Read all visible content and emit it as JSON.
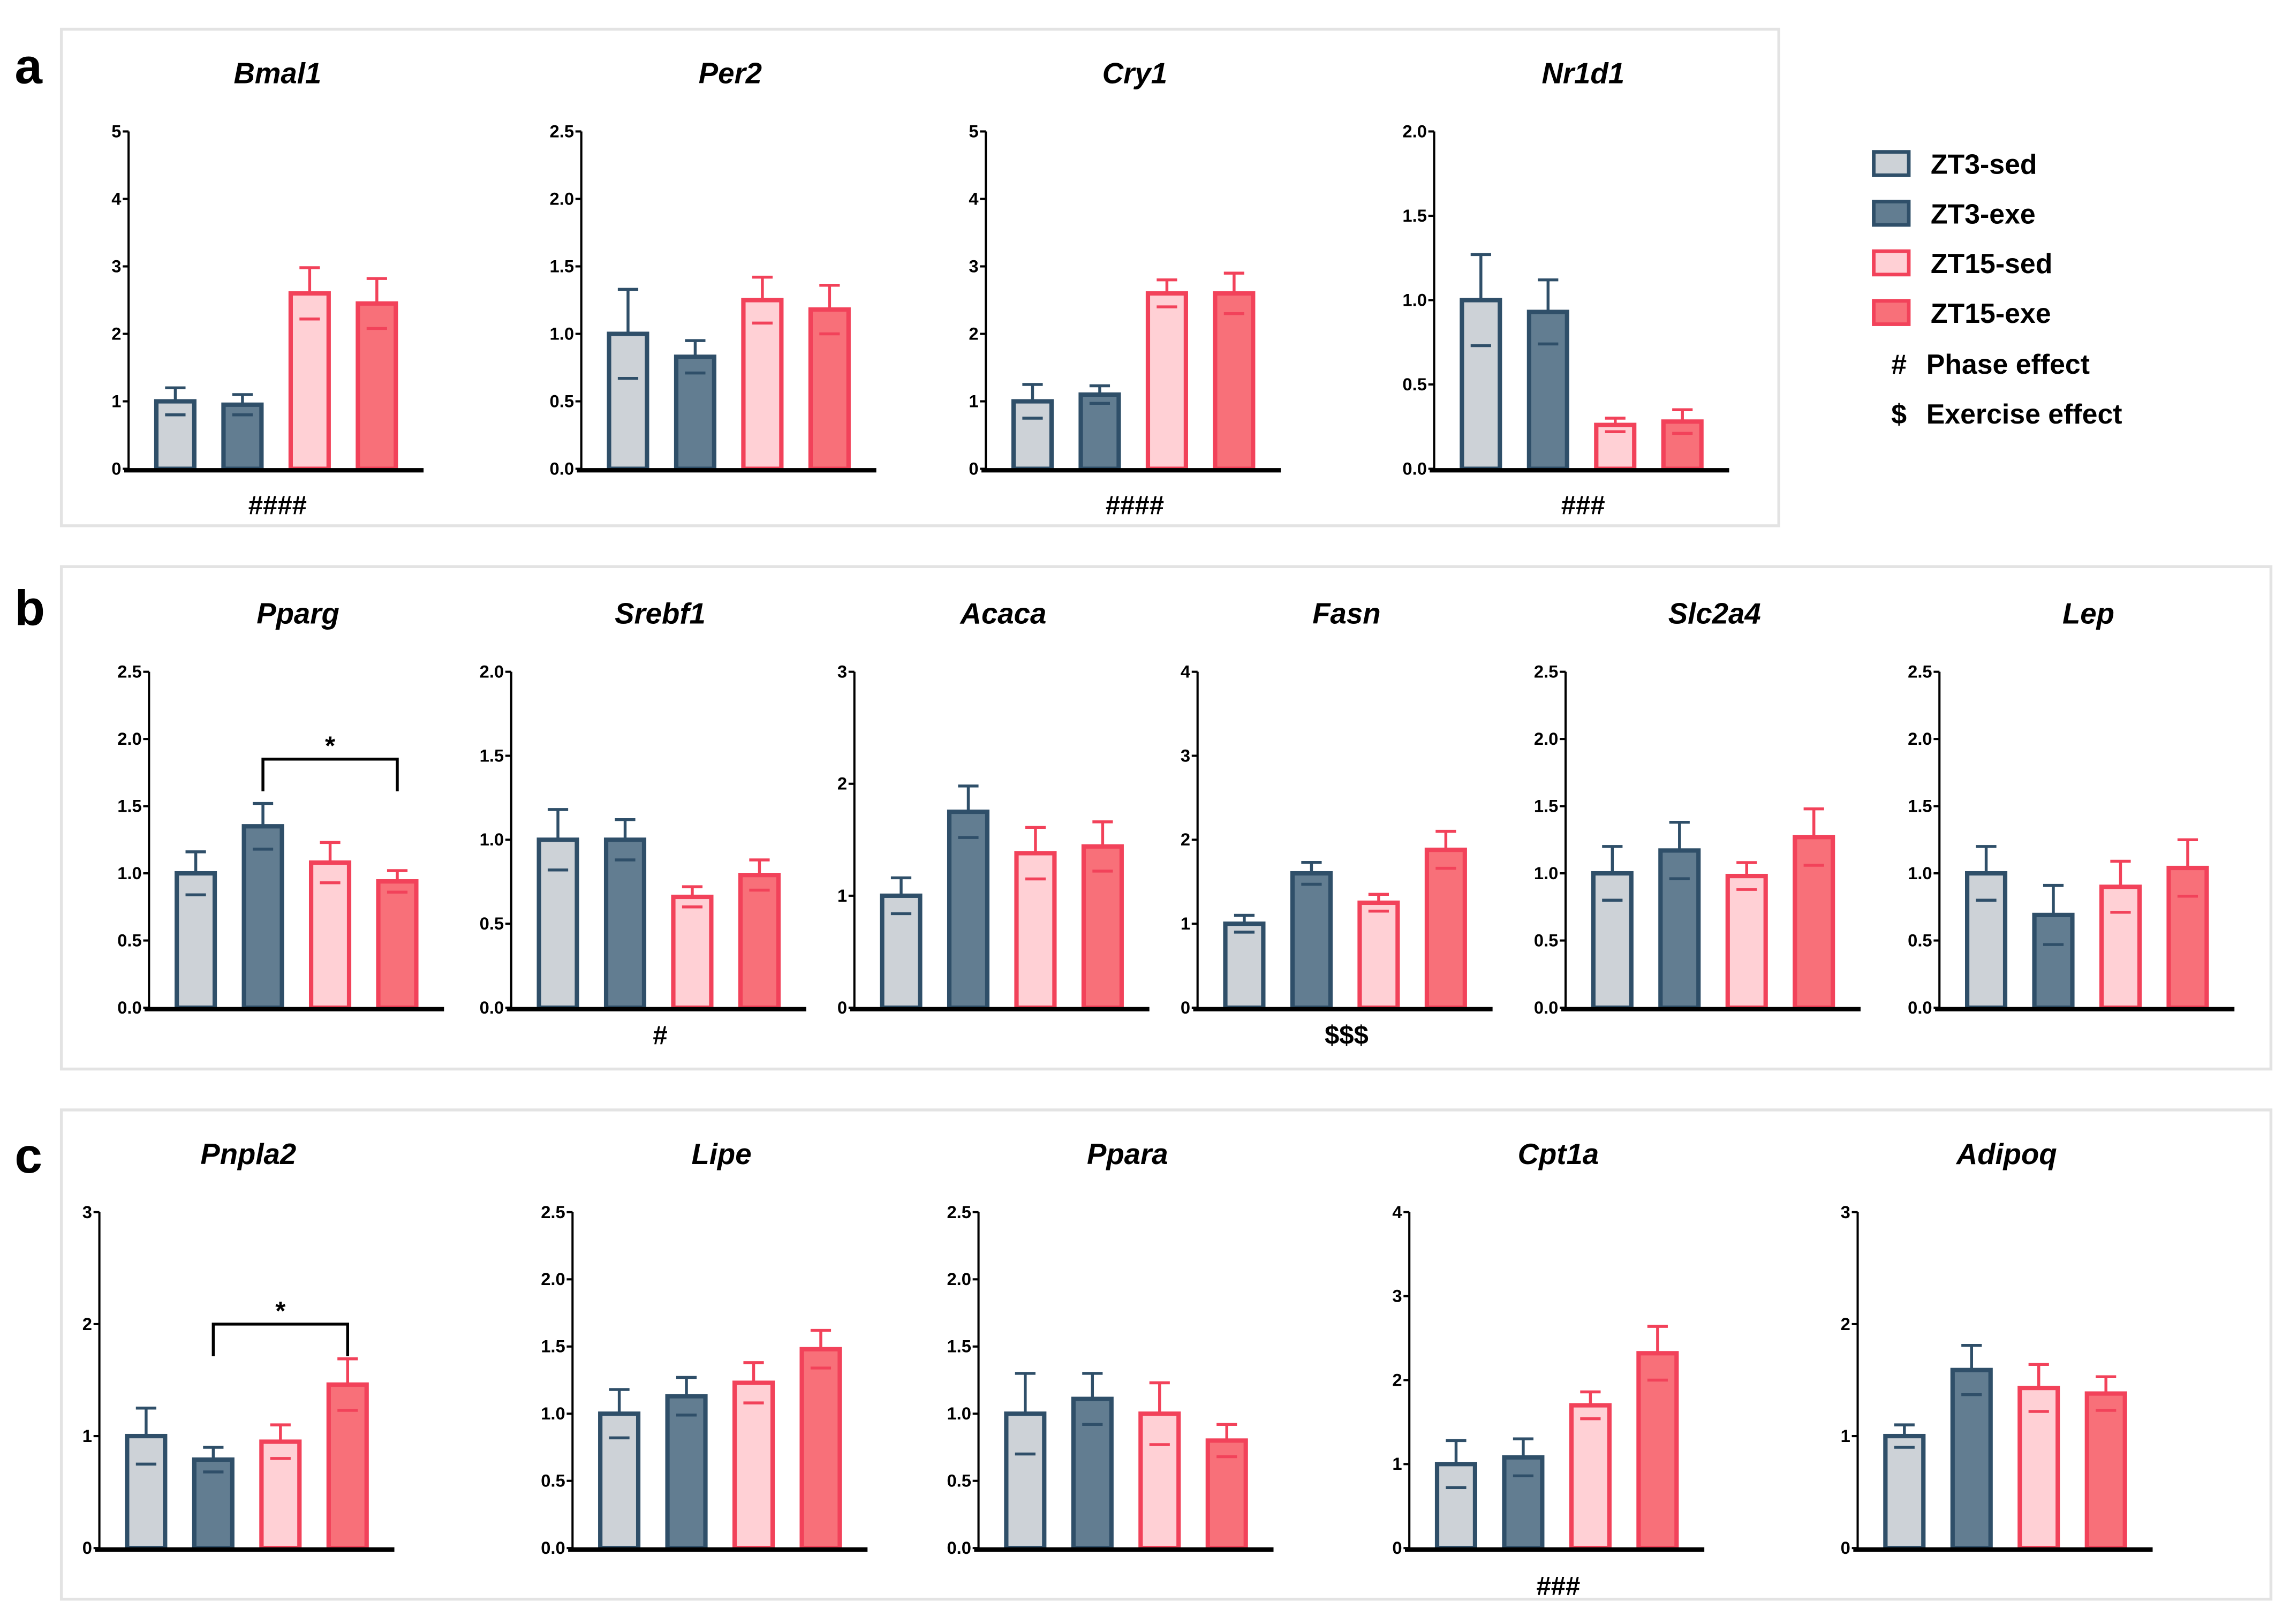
{
  "colors": {
    "ZT3-sed": {
      "fill": "#cdd2d7",
      "stroke": "#2f4f69"
    },
    "ZT3-exe": {
      "fill": "#627d91",
      "stroke": "#2f4f69"
    },
    "ZT15-sed": {
      "fill": "#ffd0d5",
      "stroke": "#f2425a"
    },
    "ZT15-exe": {
      "fill": "#f87079",
      "stroke": "#f2425a"
    }
  },
  "legend": {
    "items": [
      "ZT3-sed",
      "ZT3-exe",
      "ZT15-sed",
      "ZT15-exe"
    ],
    "symbols": [
      {
        "symbol": "#",
        "label": "Phase effect"
      },
      {
        "symbol": "$",
        "label": "Exercise effect"
      }
    ]
  },
  "panels": [
    {
      "label": "a"
    },
    {
      "label": "b"
    },
    {
      "label": "c"
    }
  ],
  "chart_data": [
    {
      "type": "bar",
      "panel": "a",
      "title": "Bmal1",
      "categories": [
        "ZT3-sed",
        "ZT3-exe",
        "ZT15-sed",
        "ZT15-exe"
      ],
      "values": [
        1.0,
        0.95,
        2.6,
        2.45
      ],
      "errors": [
        0.2,
        0.15,
        0.38,
        0.37
      ],
      "ylim": [
        0,
        5
      ],
      "yticks": [
        "0",
        "1",
        "2",
        "3",
        "4",
        "5"
      ],
      "annotation": "####"
    },
    {
      "type": "bar",
      "panel": "a",
      "title": "Per2",
      "categories": [
        "ZT3-sed",
        "ZT3-exe",
        "ZT15-sed",
        "ZT15-exe"
      ],
      "values": [
        1.0,
        0.83,
        1.25,
        1.18
      ],
      "errors": [
        0.33,
        0.12,
        0.17,
        0.18
      ],
      "ylim": [
        0,
        2.5
      ],
      "yticks": [
        "0.0",
        "0.5",
        "1.0",
        "1.5",
        "2.0",
        "2.5"
      ],
      "annotation": ""
    },
    {
      "type": "bar",
      "panel": "a",
      "title": "Cry1",
      "categories": [
        "ZT3-sed",
        "ZT3-exe",
        "ZT15-sed",
        "ZT15-exe"
      ],
      "values": [
        1.0,
        1.1,
        2.6,
        2.6
      ],
      "errors": [
        0.25,
        0.13,
        0.2,
        0.3
      ],
      "ylim": [
        0,
        5
      ],
      "yticks": [
        "0",
        "1",
        "2",
        "3",
        "4",
        "5"
      ],
      "annotation": "####"
    },
    {
      "type": "bar",
      "panel": "a",
      "title": "Nr1d1",
      "categories": [
        "ZT3-sed",
        "ZT3-exe",
        "ZT15-sed",
        "ZT15-exe"
      ],
      "values": [
        1.0,
        0.93,
        0.26,
        0.28
      ],
      "errors": [
        0.27,
        0.19,
        0.04,
        0.07
      ],
      "ylim": [
        0,
        2.0
      ],
      "yticks": [
        "0.0",
        "0.5",
        "1.0",
        "1.5",
        "2.0"
      ],
      "annotation": "###"
    },
    {
      "type": "bar",
      "panel": "b",
      "title": "Pparg",
      "categories": [
        "ZT3-sed",
        "ZT3-exe",
        "ZT15-sed",
        "ZT15-exe"
      ],
      "values": [
        1.0,
        1.35,
        1.08,
        0.94
      ],
      "errors": [
        0.16,
        0.17,
        0.15,
        0.08
      ],
      "ylim": [
        0,
        2.5
      ],
      "yticks": [
        "0.0",
        "0.5",
        "1.0",
        "1.5",
        "2.0",
        "2.5"
      ],
      "annotation": "",
      "bracket": {
        "from": 1,
        "to": 3,
        "level": 1.85,
        "label": "*"
      }
    },
    {
      "type": "bar",
      "panel": "b",
      "title": "Srebf1",
      "categories": [
        "ZT3-sed",
        "ZT3-exe",
        "ZT15-sed",
        "ZT15-exe"
      ],
      "values": [
        1.0,
        1.0,
        0.66,
        0.79
      ],
      "errors": [
        0.18,
        0.12,
        0.06,
        0.09
      ],
      "ylim": [
        0,
        2.0
      ],
      "yticks": [
        "0.0",
        "0.5",
        "1.0",
        "1.5",
        "2.0"
      ],
      "annotation": "#"
    },
    {
      "type": "bar",
      "panel": "b",
      "title": "Acaca",
      "categories": [
        "ZT3-sed",
        "ZT3-exe",
        "ZT15-sed",
        "ZT15-exe"
      ],
      "values": [
        1.0,
        1.75,
        1.38,
        1.44
      ],
      "errors": [
        0.16,
        0.23,
        0.23,
        0.22
      ],
      "ylim": [
        0,
        3
      ],
      "yticks": [
        "0",
        "1",
        "2",
        "3"
      ],
      "annotation": ""
    },
    {
      "type": "bar",
      "panel": "b",
      "title": "Fasn",
      "categories": [
        "ZT3-sed",
        "ZT3-exe",
        "ZT15-sed",
        "ZT15-exe"
      ],
      "values": [
        1.0,
        1.6,
        1.25,
        1.88
      ],
      "errors": [
        0.1,
        0.13,
        0.1,
        0.22
      ],
      "ylim": [
        0,
        4
      ],
      "yticks": [
        "0",
        "1",
        "2",
        "3",
        "4"
      ],
      "annotation": "$$$"
    },
    {
      "type": "bar",
      "panel": "b",
      "title": "Slc2a4",
      "categories": [
        "ZT3-sed",
        "ZT3-exe",
        "ZT15-sed",
        "ZT15-exe"
      ],
      "values": [
        1.0,
        1.17,
        0.98,
        1.27
      ],
      "errors": [
        0.2,
        0.21,
        0.1,
        0.21
      ],
      "ylim": [
        0,
        2.5
      ],
      "yticks": [
        "0.0",
        "0.5",
        "1.0",
        "1.5",
        "2.0",
        "2.5"
      ],
      "annotation": ""
    },
    {
      "type": "bar",
      "panel": "b",
      "title": "Lep",
      "categories": [
        "ZT3-sed",
        "ZT3-exe",
        "ZT15-sed",
        "ZT15-exe"
      ],
      "values": [
        1.0,
        0.69,
        0.9,
        1.04
      ],
      "errors": [
        0.2,
        0.22,
        0.19,
        0.21
      ],
      "ylim": [
        0,
        2.5
      ],
      "yticks": [
        "0.0",
        "0.5",
        "1.0",
        "1.5",
        "2.0",
        "2.5"
      ],
      "annotation": ""
    },
    {
      "type": "bar",
      "panel": "c",
      "title": "Pnpla2",
      "categories": [
        "ZT3-sed",
        "ZT3-exe",
        "ZT15-sed",
        "ZT15-exe"
      ],
      "values": [
        1.0,
        0.79,
        0.95,
        1.46
      ],
      "errors": [
        0.25,
        0.11,
        0.15,
        0.23
      ],
      "ylim": [
        0,
        3
      ],
      "yticks": [
        "0",
        "1",
        "2",
        "3"
      ],
      "annotation": "",
      "bracket": {
        "from": 1,
        "to": 3,
        "level": 2.0,
        "label": "*"
      }
    },
    {
      "type": "bar",
      "panel": "c",
      "title": "Lipe",
      "categories": [
        "ZT3-sed",
        "ZT3-exe",
        "ZT15-sed",
        "ZT15-exe"
      ],
      "values": [
        1.0,
        1.13,
        1.23,
        1.48
      ],
      "errors": [
        0.18,
        0.14,
        0.15,
        0.14
      ],
      "ylim": [
        0,
        2.5
      ],
      "yticks": [
        "0.0",
        "0.5",
        "1.0",
        "1.5",
        "2.0",
        "2.5"
      ],
      "annotation": ""
    },
    {
      "type": "bar",
      "panel": "c",
      "title": "Ppara",
      "categories": [
        "ZT3-sed",
        "ZT3-exe",
        "ZT15-sed",
        "ZT15-exe"
      ],
      "values": [
        1.0,
        1.11,
        1.0,
        0.8
      ],
      "errors": [
        0.3,
        0.19,
        0.23,
        0.12
      ],
      "ylim": [
        0,
        2.5
      ],
      "yticks": [
        "0.0",
        "0.5",
        "1.0",
        "1.5",
        "2.0",
        "2.5"
      ],
      "annotation": ""
    },
    {
      "type": "bar",
      "panel": "c",
      "title": "Cpt1a",
      "categories": [
        "ZT3-sed",
        "ZT3-exe",
        "ZT15-sed",
        "ZT15-exe"
      ],
      "values": [
        1.0,
        1.08,
        1.7,
        2.32
      ],
      "errors": [
        0.28,
        0.22,
        0.16,
        0.32
      ],
      "ylim": [
        0,
        4
      ],
      "yticks": [
        "0",
        "1",
        "2",
        "3",
        "4"
      ],
      "annotation": "###"
    },
    {
      "type": "bar",
      "panel": "c",
      "title": "Adipoq",
      "categories": [
        "ZT3-sed",
        "ZT3-exe",
        "ZT15-sed",
        "ZT15-exe"
      ],
      "values": [
        1.0,
        1.59,
        1.43,
        1.38
      ],
      "errors": [
        0.1,
        0.22,
        0.21,
        0.15
      ],
      "ylim": [
        0,
        3
      ],
      "yticks": [
        "0",
        "1",
        "2",
        "3"
      ],
      "annotation": ""
    }
  ]
}
